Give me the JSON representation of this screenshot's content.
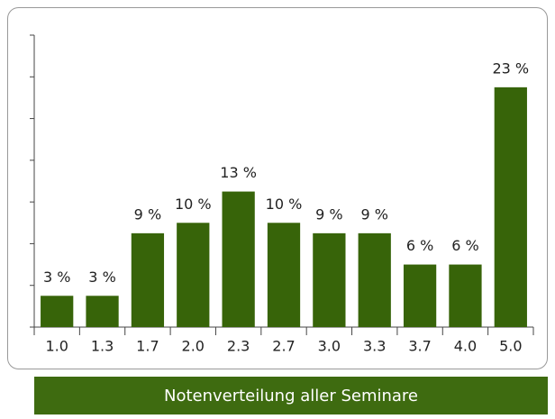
{
  "chart_data": {
    "type": "bar",
    "title": "Notenverteilung aller Seminare",
    "categories": [
      "1.0",
      "1.3",
      "1.7",
      "2.0",
      "2.3",
      "2.7",
      "3.0",
      "3.3",
      "3.7",
      "4.0",
      "5.0"
    ],
    "values": [
      3,
      3,
      9,
      10,
      13,
      10,
      9,
      9,
      6,
      6,
      23
    ],
    "value_labels": [
      "3 %",
      "3 %",
      "9 %",
      "10 %",
      "13 %",
      "10 %",
      "9 %",
      "9 %",
      "6 %",
      "6 %",
      "23 %"
    ],
    "color": "#376409",
    "ylim": [
      0,
      28
    ],
    "yticks": [
      0,
      4,
      8,
      12,
      16,
      20,
      24,
      28
    ],
    "grid": false
  }
}
